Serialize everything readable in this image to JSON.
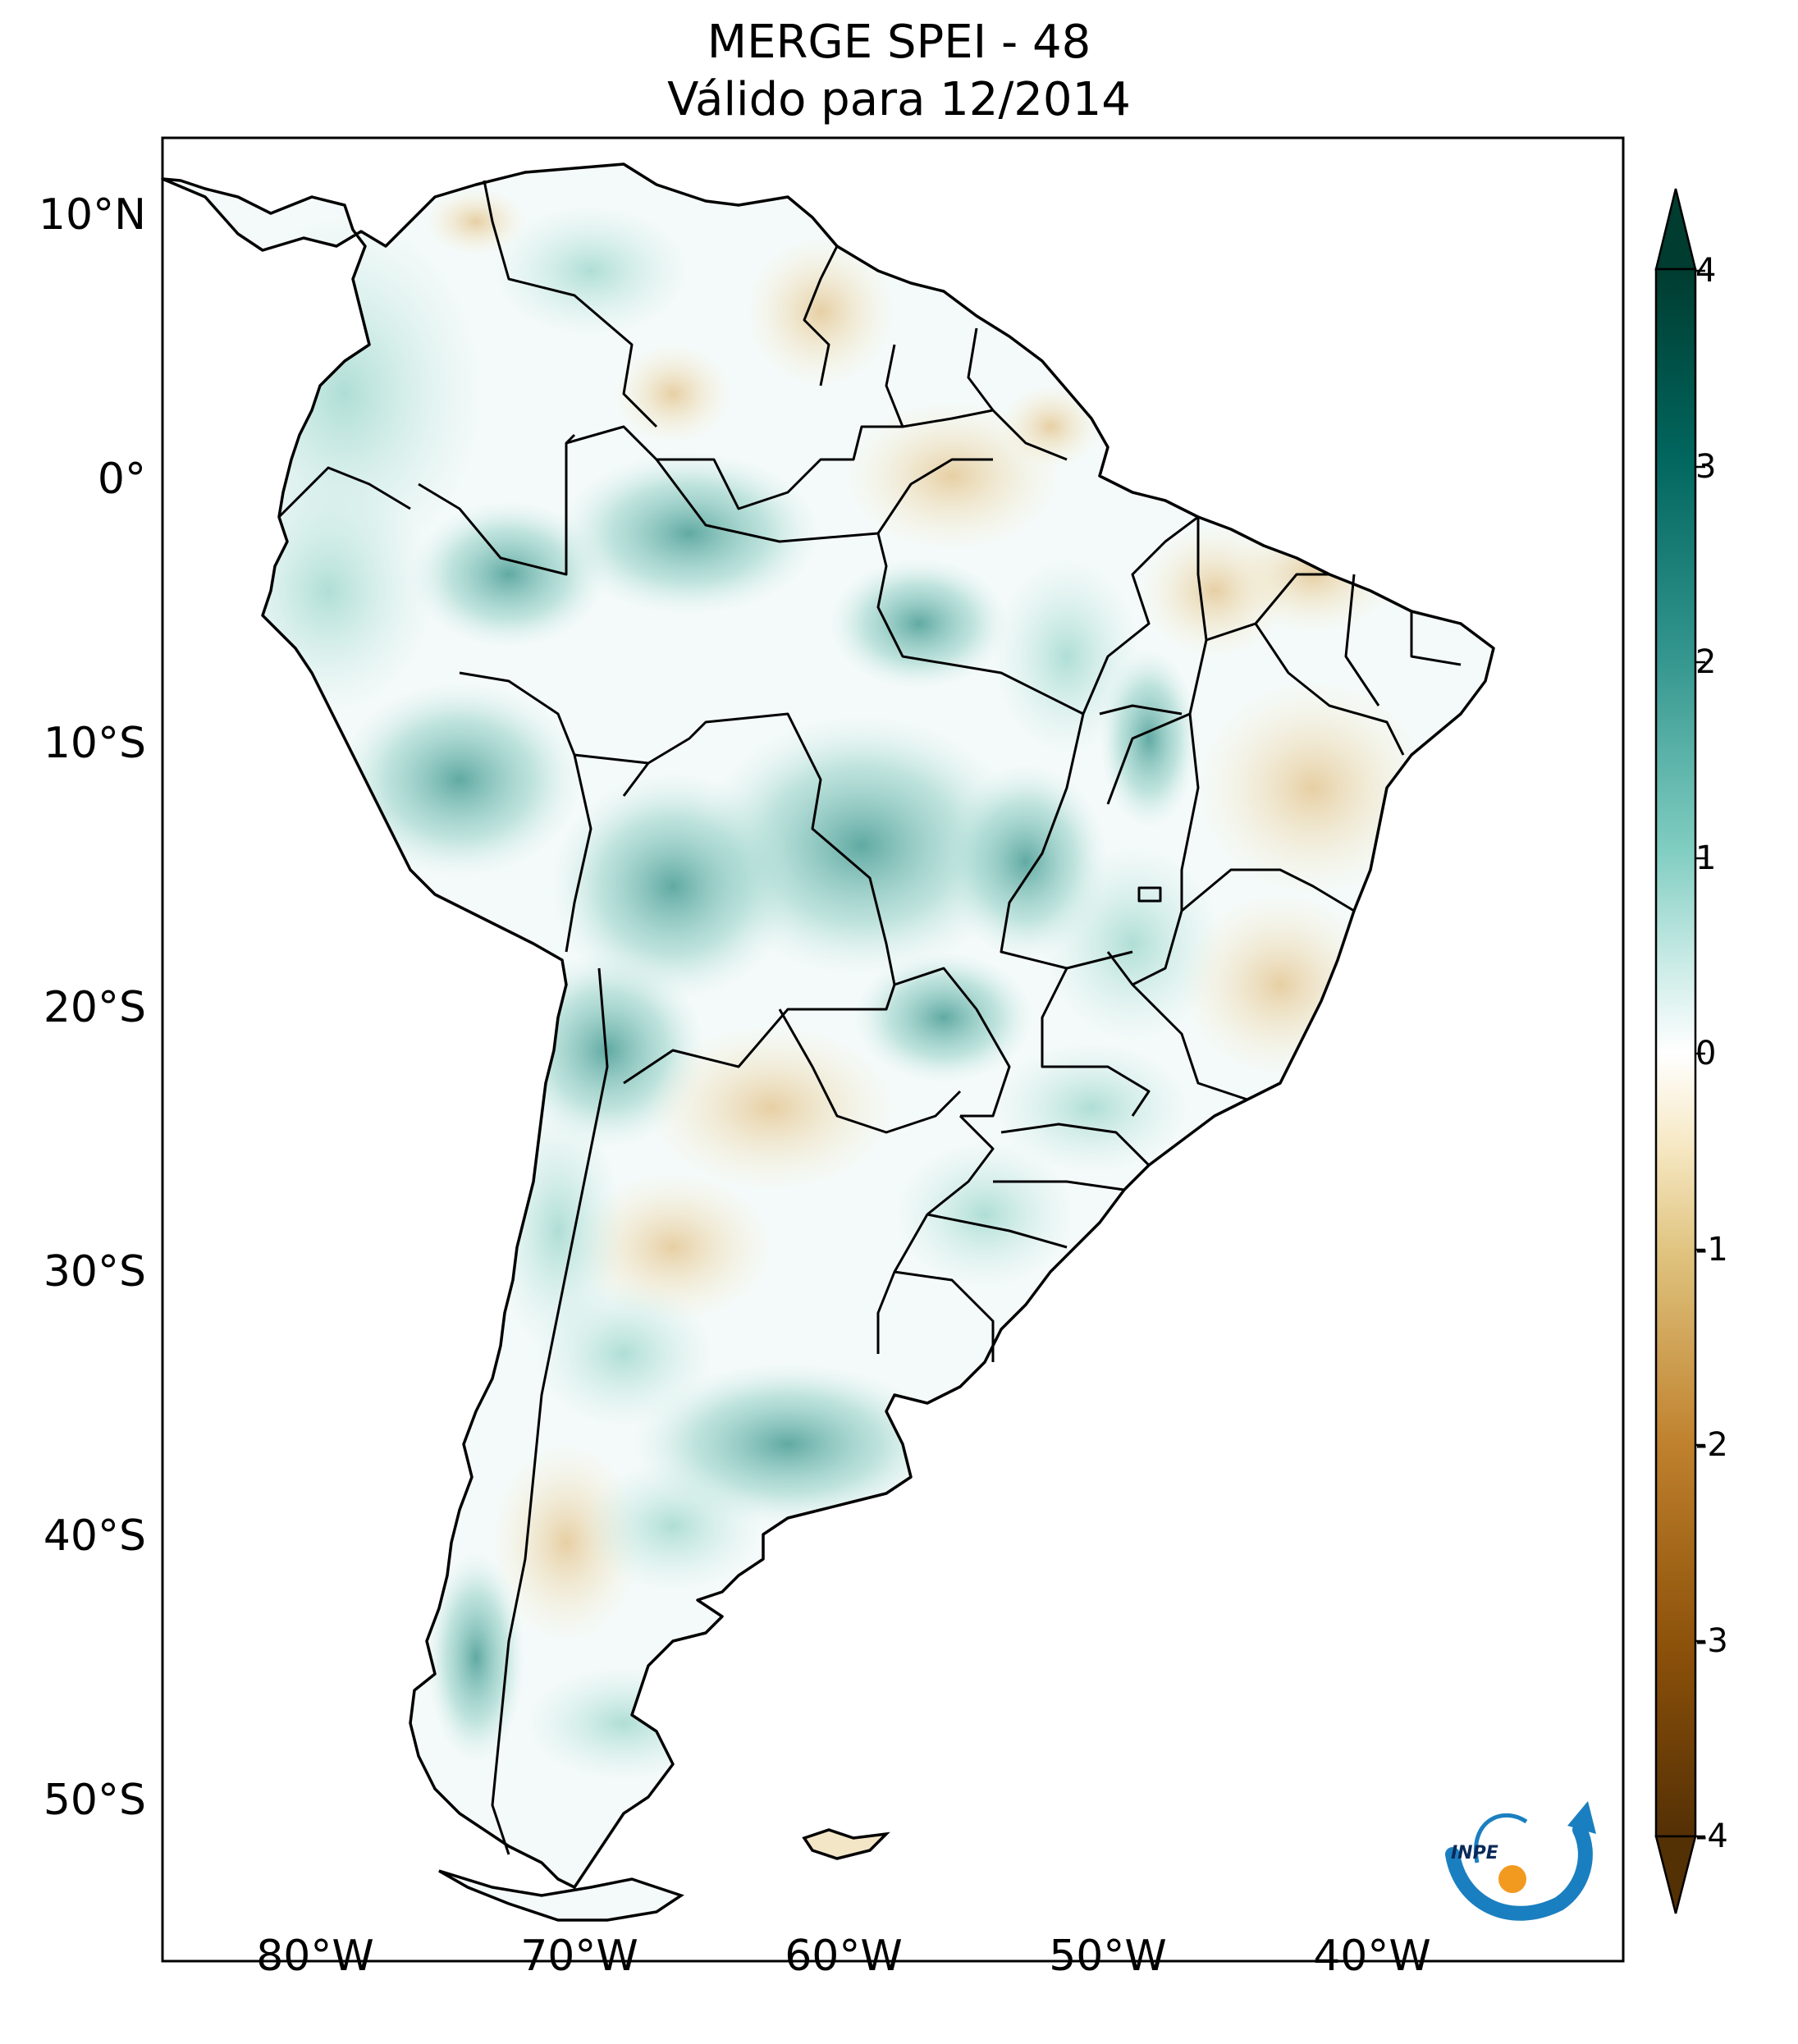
{
  "title": {
    "line1": "MERGE   SPEI - 48",
    "line2": "Válido para 12/2014"
  },
  "map": {
    "region": "South America",
    "lat_ticks": [
      "10°N",
      "0°",
      "10°S",
      "20°S",
      "30°S",
      "40°S",
      "50°S"
    ],
    "lon_ticks": [
      "80°W",
      "70°W",
      "60°W",
      "50°W",
      "40°W"
    ]
  },
  "colorbar": {
    "ticks": [
      "4",
      "3",
      "2",
      "1",
      "0",
      "-1",
      "-2",
      "-3",
      "-4"
    ],
    "colormap": "BrBG",
    "extend": "both",
    "colors": {
      "max": "#003c30",
      "high": "#35978f",
      "mid_high": "#c7eae5",
      "zero": "#ffffff",
      "mid_low": "#f6e8c3",
      "low": "#bf812d",
      "min": "#543005"
    }
  },
  "logo": {
    "text": "INPE",
    "colors": {
      "arc": "#1a7fc0",
      "dot": "#f29a1f"
    }
  }
}
